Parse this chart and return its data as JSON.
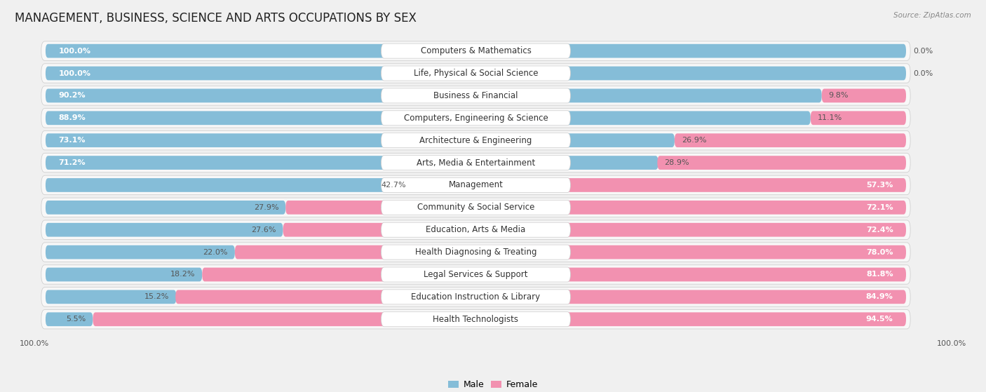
{
  "title": "MANAGEMENT, BUSINESS, SCIENCE AND ARTS OCCUPATIONS BY SEX",
  "source": "Source: ZipAtlas.com",
  "categories": [
    "Computers & Mathematics",
    "Life, Physical & Social Science",
    "Business & Financial",
    "Computers, Engineering & Science",
    "Architecture & Engineering",
    "Arts, Media & Entertainment",
    "Management",
    "Community & Social Service",
    "Education, Arts & Media",
    "Health Diagnosing & Treating",
    "Legal Services & Support",
    "Education Instruction & Library",
    "Health Technologists"
  ],
  "male": [
    100.0,
    100.0,
    90.2,
    88.9,
    73.1,
    71.2,
    42.7,
    27.9,
    27.6,
    22.0,
    18.2,
    15.2,
    5.5
  ],
  "female": [
    0.0,
    0.0,
    9.8,
    11.1,
    26.9,
    28.9,
    57.3,
    72.1,
    72.4,
    78.0,
    81.8,
    84.9,
    94.5
  ],
  "male_color": "#85bdd8",
  "female_color": "#f291b0",
  "bg_color": "#f0f0f0",
  "bar_bg_color": "#e8e8e8",
  "row_bg_color": "#f8f8f8",
  "title_fontsize": 12,
  "label_fontsize": 8.5,
  "bar_label_fontsize": 8,
  "legend_fontsize": 9,
  "axis_label_fontsize": 8
}
